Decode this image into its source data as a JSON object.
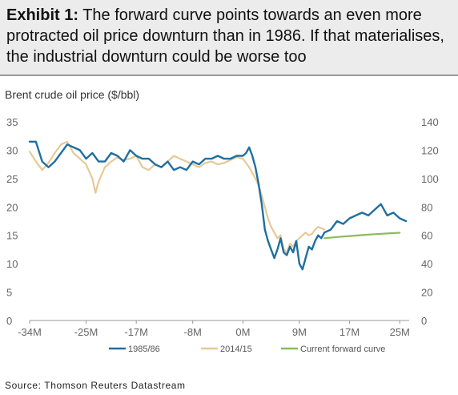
{
  "header": {
    "exhibit_label": "Exhibit 1:",
    "exhibit_text": "The forward curve points towards an even more protracted oil price downturn than in 1986. If that materialises, the industrial downturn could be worse too"
  },
  "chart_heading": "Brent crude oil price ($/bbl)",
  "source": "Source: Thomson Reuters Datastream",
  "colors": {
    "series_1985": "#1f6fa1",
    "series_2014": "#e6c996",
    "series_forward": "#8dbb5b",
    "axis": "#999999"
  },
  "chart_data": {
    "type": "line",
    "title": "",
    "xlabel": "",
    "ylabel": "",
    "x_ticks": [
      "-34M",
      "-25M",
      "-17M",
      "-8M",
      "0M",
      "9M",
      "17M",
      "25M"
    ],
    "x_tick_values": [
      -34,
      -25,
      -17,
      -8,
      0,
      9,
      17,
      25
    ],
    "xlim": [
      -34,
      26.5
    ],
    "y_left_ticks": [
      "0",
      "5",
      "10",
      "15",
      "20",
      "25",
      "30",
      "35"
    ],
    "y_left_lim": [
      0,
      35
    ],
    "y_right_ticks": [
      "0",
      "20",
      "40",
      "60",
      "80",
      "100",
      "120",
      "140"
    ],
    "y_right_lim": [
      0,
      140
    ],
    "grid": false,
    "legend_position": "bottom",
    "series": [
      {
        "name": "1985/86",
        "axis": "left",
        "x": [
          -34,
          -33,
          -32,
          -31,
          -30,
          -29,
          -28,
          -27,
          -26,
          -25,
          -24,
          -23,
          -22,
          -21,
          -20,
          -19,
          -18,
          -17,
          -16,
          -15,
          -14,
          -13,
          -12,
          -11,
          -10,
          -9,
          -8,
          -7,
          -6,
          -5,
          -4,
          -3,
          -2,
          -1,
          0,
          0.5,
          1,
          1.5,
          2,
          2.5,
          3,
          3.5,
          4,
          4.5,
          5,
          5.5,
          6,
          6.5,
          7,
          7.5,
          8,
          8.5,
          9,
          9.5,
          10,
          10.5,
          11,
          11.5,
          12,
          12.5,
          13,
          14,
          15,
          16,
          17,
          18,
          19,
          20,
          21,
          22,
          23,
          24,
          25,
          26
        ],
        "values": [
          31.5,
          31.5,
          28,
          27,
          28,
          29.5,
          31,
          30.5,
          30,
          28.5,
          29.5,
          28,
          28,
          29.5,
          29,
          28,
          30,
          29,
          28.5,
          28.5,
          27.5,
          27,
          28,
          26.5,
          27,
          26.5,
          28,
          27.5,
          28.5,
          28.5,
          29,
          28.5,
          28.5,
          29,
          29,
          29.5,
          30.5,
          29,
          27,
          24,
          20.5,
          16,
          14,
          12.5,
          11,
          12.5,
          14.5,
          12,
          11.5,
          13,
          12,
          14,
          10,
          9,
          11,
          13,
          12.5,
          14,
          15,
          14.5,
          15.5,
          16,
          17.5,
          17,
          18,
          18.5,
          19,
          18.5,
          19.5,
          20.5,
          18.5,
          19,
          18,
          17.5
        ]
      },
      {
        "name": "2014/15",
        "axis": "right",
        "x": [
          -34,
          -33,
          -32,
          -31,
          -30,
          -29,
          -28,
          -27,
          -26,
          -25,
          -24,
          -23.5,
          -23,
          -22,
          -21,
          -20,
          -19,
          -18,
          -17,
          -16,
          -15,
          -14,
          -13,
          -12,
          -11,
          -10,
          -9,
          -8,
          -7,
          -6,
          -5,
          -4,
          -3,
          -2,
          -1,
          0,
          1,
          1.5,
          2,
          2.5,
          3,
          3.5,
          4,
          4.5,
          5,
          5.5,
          6,
          6.5,
          7,
          7.5,
          8,
          8.5,
          9,
          9.5,
          10,
          10.5,
          11,
          11.5,
          12,
          12.5,
          13
        ],
        "values": [
          119,
          112,
          106,
          111,
          118,
          124,
          126,
          118,
          114,
          110,
          100,
          90,
          98,
          108,
          112,
          115,
          113,
          114,
          116,
          108,
          106,
          110,
          108,
          112,
          116,
          114,
          112,
          110,
          108,
          111,
          112,
          110,
          111,
          113,
          115,
          114,
          108,
          104,
          100,
          95,
          88,
          80,
          72,
          66,
          62,
          58,
          60,
          50,
          48,
          54,
          52,
          56,
          58,
          60,
          62,
          60,
          61,
          64,
          66,
          65,
          64
        ]
      },
      {
        "name": "Current forward curve",
        "axis": "right",
        "x": [
          13,
          15,
          17,
          19,
          21,
          23,
          25
        ],
        "values": [
          58,
          58.8,
          59.5,
          60.2,
          60.8,
          61.3,
          61.8
        ]
      }
    ]
  }
}
